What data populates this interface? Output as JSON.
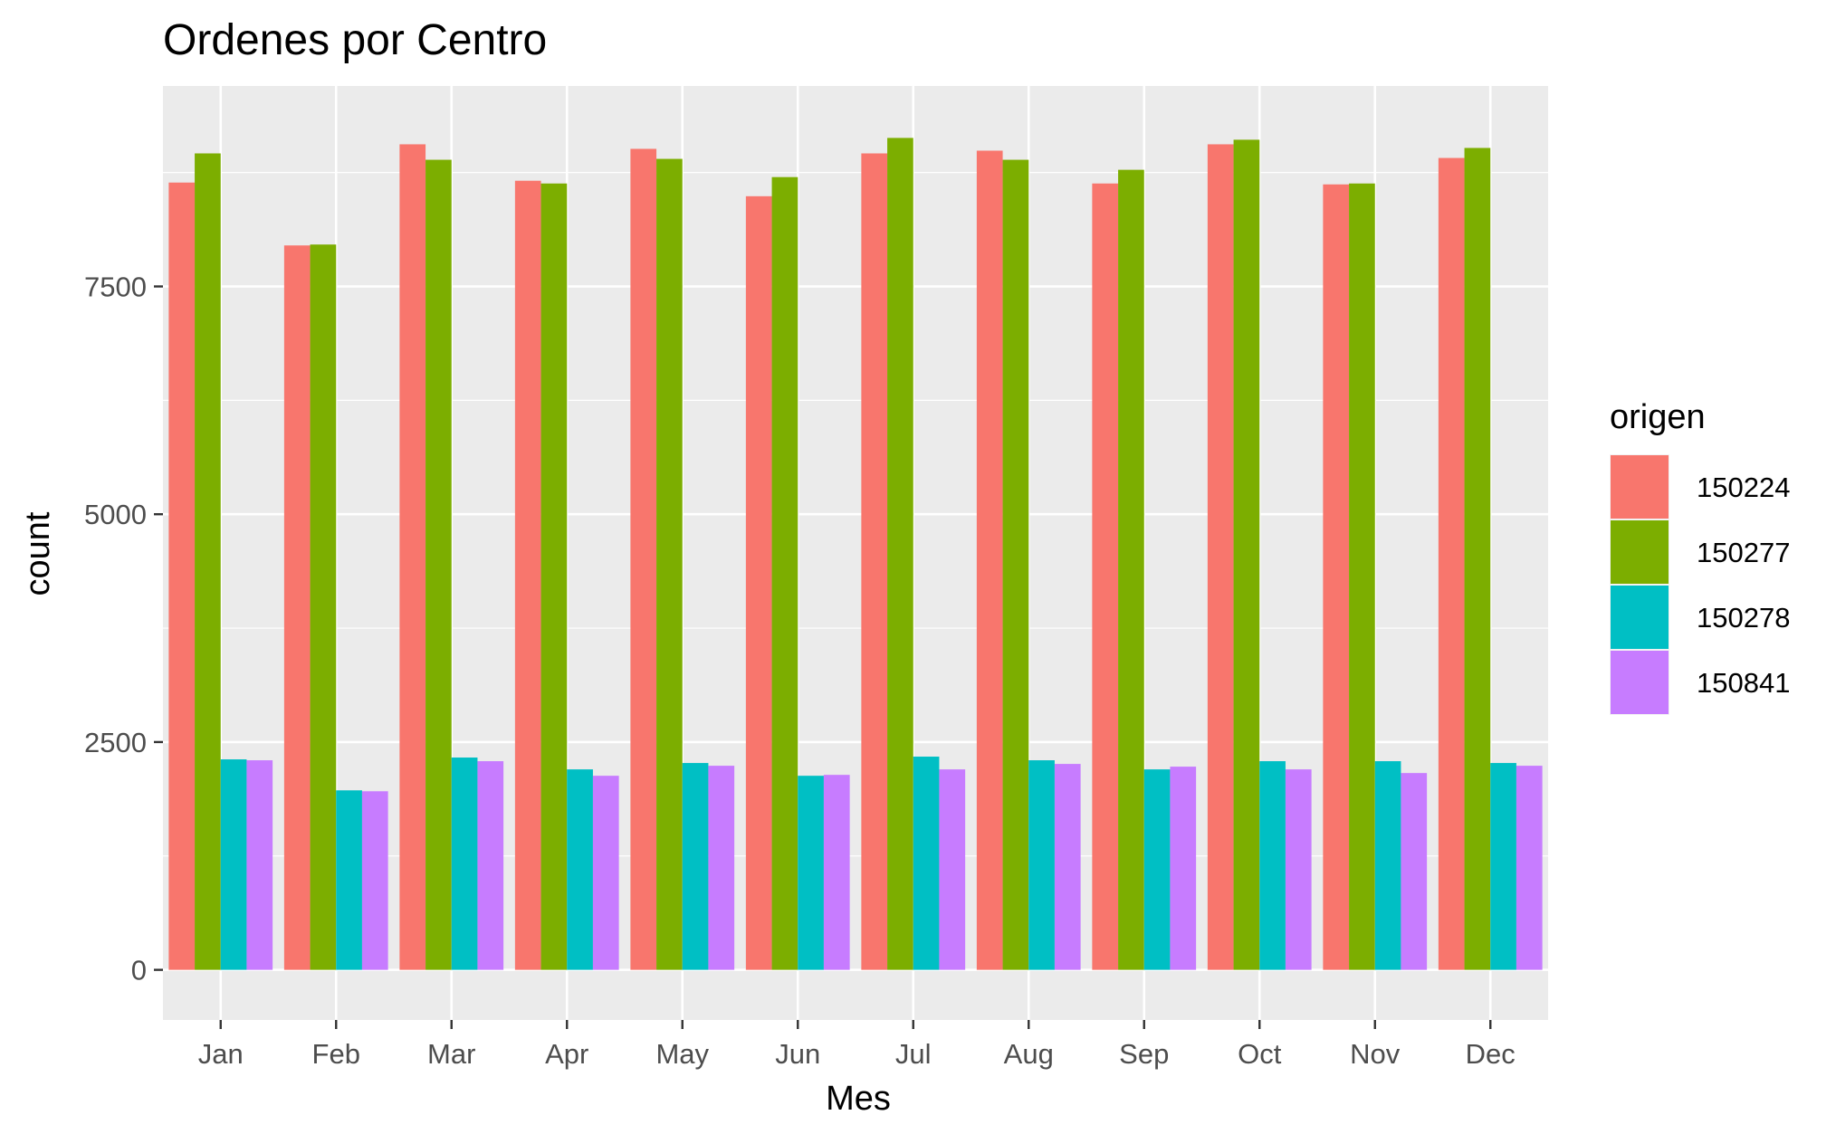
{
  "chart_data": {
    "type": "bar",
    "title": "Ordenes por Centro",
    "xlabel": "Mes",
    "ylabel": "count",
    "ylim": [
      -550,
      9700
    ],
    "yticks": [
      0,
      2500,
      5000,
      7500
    ],
    "ytick_labels": [
      "0",
      "2500",
      "5000",
      "7500"
    ],
    "grid": true,
    "legend_title": "origen",
    "legend_position": "right",
    "categories": [
      "Jan",
      "Feb",
      "Mar",
      "Apr",
      "May",
      "Jun",
      "Jul",
      "Aug",
      "Sep",
      "Oct",
      "Nov",
      "Dec"
    ],
    "series": [
      {
        "name": "150224",
        "color": "#F8766D",
        "values": [
          8640,
          7950,
          9060,
          8660,
          9010,
          8490,
          8960,
          8990,
          8630,
          9060,
          8620,
          8910
        ]
      },
      {
        "name": "150277",
        "color": "#7CAE00",
        "values": [
          8960,
          7960,
          8890,
          8630,
          8900,
          8700,
          9130,
          8890,
          8780,
          9110,
          8630,
          9020
        ]
      },
      {
        "name": "150278",
        "color": "#00BFC4",
        "values": [
          2310,
          1970,
          2330,
          2200,
          2270,
          2130,
          2340,
          2300,
          2200,
          2290,
          2290,
          2270
        ]
      },
      {
        "name": "150841",
        "color": "#C77CFF",
        "values": [
          2300,
          1960,
          2290,
          2130,
          2240,
          2140,
          2200,
          2260,
          2230,
          2200,
          2160,
          2240
        ]
      }
    ]
  }
}
